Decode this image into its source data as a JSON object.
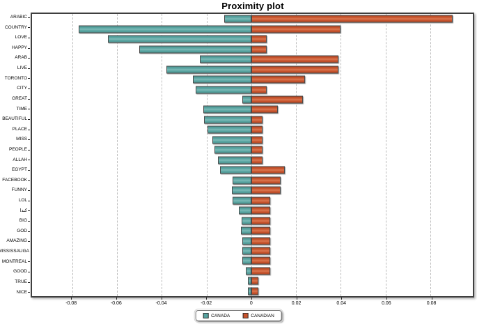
{
  "title": "Proximity plot",
  "chart_data": {
    "type": "bar",
    "orientation": "horizontal-diverging",
    "title": "Proximity plot",
    "xlabel": "",
    "ylabel": "",
    "xlim": [
      -0.098,
      0.099
    ],
    "grid": "vertical-dashed",
    "legend_position": "bottom-center",
    "background_color": "#ffffff",
    "categories": [
      "ARABIC",
      "COUNTRY",
      "LOVE",
      "HAPPY",
      "ARAB",
      "LIVE",
      "TORONTO",
      "CITY",
      "GREAT",
      "TIME",
      "BEAUTIFUL",
      "PLACE",
      "MISS",
      "PEOPLE",
      "ALLAH",
      "EGYPT",
      "FACEBOOK",
      "FUNNY",
      "LOL",
      "كندا",
      "BIG",
      "GOD",
      "AMAZING",
      "MISSISSAUGA",
      "MONTREAL",
      "GOOD",
      "TRUE",
      "NICE"
    ],
    "series": [
      {
        "name": "CANADA",
        "color": "#57a3a0",
        "values": [
          -0.012,
          -0.077,
          -0.064,
          -0.05,
          -0.023,
          -0.038,
          -0.026,
          -0.025,
          -0.004,
          -0.0215,
          -0.021,
          -0.0195,
          -0.0175,
          -0.0165,
          -0.015,
          -0.014,
          -0.0085,
          -0.0087,
          -0.0084,
          -0.0057,
          -0.0044,
          -0.0046,
          -0.0039,
          -0.0039,
          -0.0039,
          -0.0026,
          -0.0014,
          -0.0014
        ]
      },
      {
        "name": "CANADIAN",
        "color": "#c8532c",
        "values": [
          0.09,
          0.04,
          0.007,
          0.007,
          0.039,
          0.039,
          0.024,
          0.007,
          0.023,
          0.012,
          0.005,
          0.005,
          0.005,
          0.005,
          0.005,
          0.015,
          0.013,
          0.013,
          0.0084,
          0.0083,
          0.0083,
          0.0083,
          0.0083,
          0.0083,
          0.0083,
          0.0083,
          0.0031,
          0.0031
        ]
      }
    ],
    "xticks": [
      -0.08,
      -0.06,
      -0.04,
      -0.02,
      0,
      0.02,
      0.04,
      0.06,
      0.08
    ],
    "xtick_labels": [
      "-0.08",
      "-0.06",
      "-0.04",
      "-0.02",
      "0",
      "0.02",
      "0.04",
      "0.06",
      "0.08"
    ]
  },
  "legend": {
    "items": [
      {
        "label": "CANADA",
        "color": "#57a3a0"
      },
      {
        "label": "CANADIAN",
        "color": "#c8532c"
      }
    ]
  }
}
